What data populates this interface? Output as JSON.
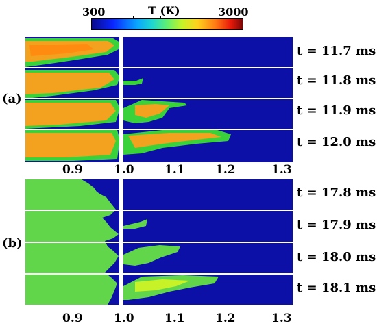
{
  "colorbar": {
    "title": "T (K)",
    "min_label": "300",
    "max_label": "3000",
    "colors": [
      "#0a0a8c",
      "#0a26ff",
      "#0aa6ff",
      "#1ed6d0",
      "#62f070",
      "#c8f228",
      "#ffd21e",
      "#ff7a14",
      "#e81a0a",
      "#7a0606"
    ]
  },
  "panel_a": {
    "tag": "(a)",
    "times": [
      "t = 11.7 ms",
      "t = 11.8 ms",
      "t = 11.9 ms",
      "t = 12.0 ms"
    ],
    "x_ticks": [
      "0.9",
      "1.0",
      "1.1",
      "1.2",
      "1.3"
    ]
  },
  "panel_b": {
    "tag": "(b)",
    "times": [
      "t = 17.8 ms",
      "t = 17.9 ms",
      "t = 18.0 ms",
      "t = 18.1 ms"
    ],
    "x_ticks": [
      "0.9",
      "1.0",
      "1.1",
      "1.2",
      "1.3"
    ]
  }
}
